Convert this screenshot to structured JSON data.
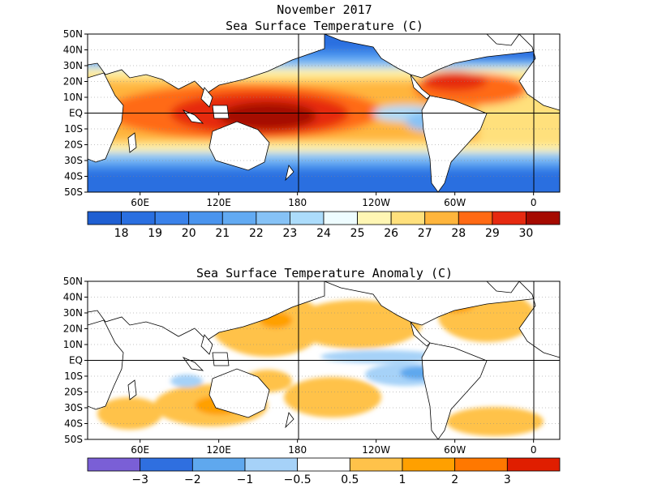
{
  "chart_data": [
    {
      "type": "heatmap",
      "title": "November 2017",
      "subtitle": "Sea Surface Temperature (C)",
      "lat_labels": [
        "50N",
        "40N",
        "30N",
        "20N",
        "10N",
        "EQ",
        "10S",
        "20S",
        "30S",
        "40S",
        "50S"
      ],
      "lon_labels": [
        "60E",
        "120E",
        "180",
        "120W",
        "60W",
        "0"
      ],
      "lon_range": [
        20,
        380
      ],
      "lat_range": [
        -50,
        50
      ],
      "grid": "dotted",
      "colorbar": {
        "labels": [
          "18",
          "19",
          "20",
          "21",
          "22",
          "23",
          "24",
          "25",
          "26",
          "27",
          "28",
          "29",
          "30"
        ],
        "colors": [
          "#1f5fd2",
          "#2a6fe0",
          "#3a82ea",
          "#4a94ee",
          "#62aaf2",
          "#86c2f6",
          "#acdcfb",
          "#eefcff",
          "#fff6b4",
          "#ffe07c",
          "#ffb53c",
          "#ff6a14",
          "#e62a10",
          "#a50a00"
        ]
      }
    },
    {
      "type": "heatmap",
      "title": "Sea Surface Temperature Anomaly (C)",
      "lat_labels": [
        "50N",
        "40N",
        "30N",
        "20N",
        "10N",
        "EQ",
        "10S",
        "20S",
        "30S",
        "40S",
        "50S"
      ],
      "lon_labels": [
        "60E",
        "120E",
        "180",
        "120W",
        "60W",
        "0"
      ],
      "lon_range": [
        20,
        380
      ],
      "lat_range": [
        -50,
        50
      ],
      "grid": "dotted",
      "colorbar": {
        "labels": [
          "−3",
          "−2",
          "−1",
          "−0.5",
          "0.5",
          "1",
          "2",
          "3"
        ],
        "colors": [
          "#7a5fd6",
          "#2f6fe0",
          "#5fa8ee",
          "#a6d2f8",
          "#ffffff",
          "#ffc24a",
          "#ffa000",
          "#ff7800",
          "#e01e00"
        ]
      }
    }
  ]
}
